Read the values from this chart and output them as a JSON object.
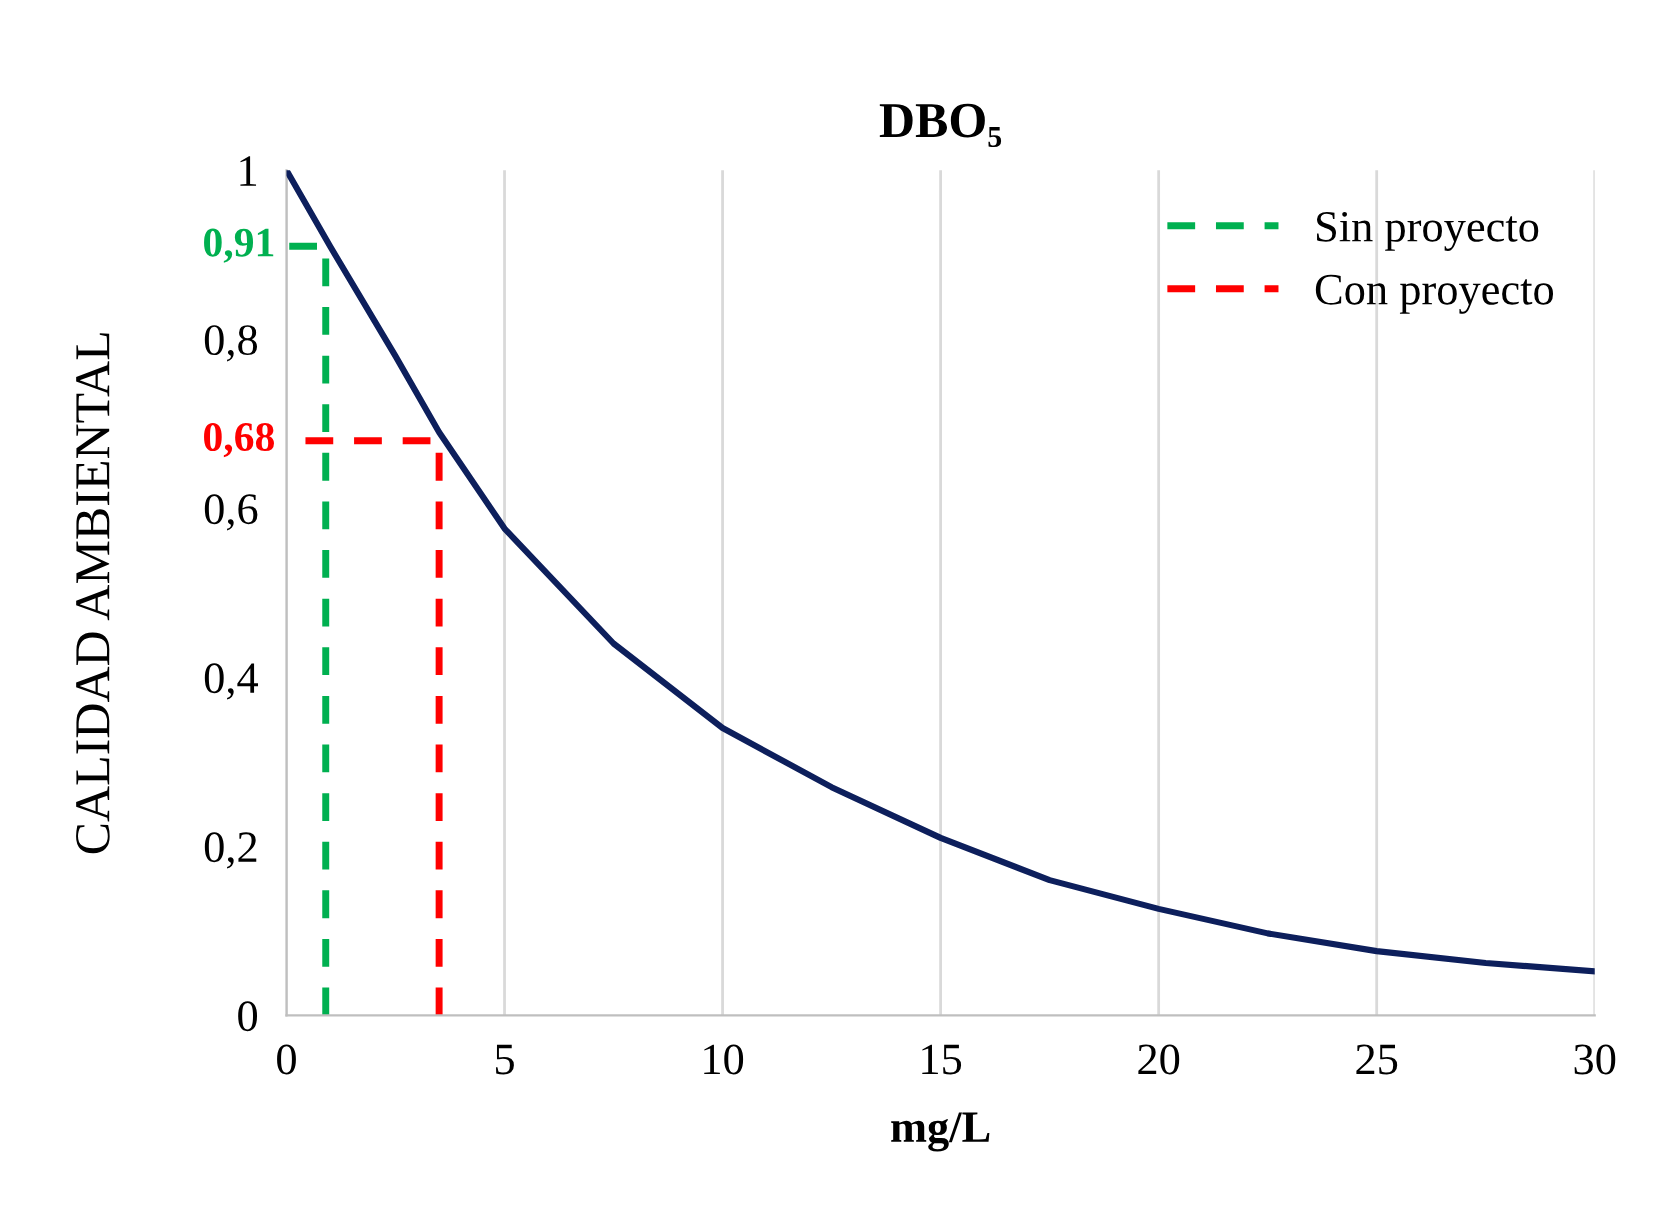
{
  "chart_data": {
    "type": "line",
    "title": "DBO₅",
    "xlabel": "mg/L",
    "ylabel": "CALIDAD AMBIENTAL",
    "series": [
      {
        "color": "#0d1f5c",
        "x": [
          0,
          1,
          2.5,
          3.5,
          5,
          7.5,
          10,
          12.5,
          15,
          17.5,
          20,
          22.5,
          25,
          27.5,
          30
        ],
        "values": [
          1,
          0.91,
          0.78,
          0.69,
          0.576,
          0.44,
          0.34,
          0.27,
          0.21,
          0.16,
          0.126,
          0.097,
          0.076,
          0.062,
          0.052
        ],
        "line_style": "solid"
      },
      {
        "name": "Sin proyecto",
        "color": "#00b050",
        "x": [
          0.9,
          0.9,
          0
        ],
        "values": [
          0,
          0.91,
          0.91
        ],
        "line_style": "dashed"
      },
      {
        "name": "Con proyecto",
        "color": "#ff0000",
        "x": [
          3.5,
          3.5,
          0
        ],
        "values": [
          0,
          0.68,
          0.68
        ],
        "line_style": "dashed"
      }
    ],
    "annotations": [
      {
        "text": "0,91",
        "x": 0,
        "y": 0.91
      },
      {
        "text": "0,68",
        "x": 0,
        "y": 0.68
      }
    ],
    "xlim": [
      0,
      30
    ],
    "xticks": [
      0,
      5,
      10,
      15,
      20,
      25,
      30
    ],
    "ylim": [
      0,
      1
    ],
    "yticks": [
      0,
      {
        "value": 0.2,
        "label": "0,2"
      },
      {
        "value": 0.4,
        "label": "0,4"
      },
      {
        "value": 0.6,
        "label": "0,6"
      },
      {
        "value": 0.8,
        "label": "0,8"
      },
      1
    ],
    "grid": "x",
    "legend": "top right",
    "marker": "none"
  }
}
